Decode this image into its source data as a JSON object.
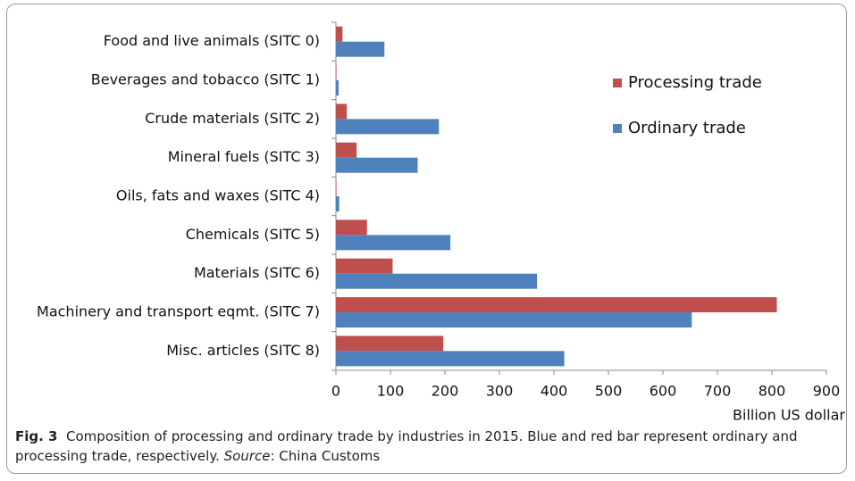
{
  "chart_data": {
    "type": "bar",
    "orientation": "horizontal",
    "categories": [
      "Food and live animals (SITC 0)",
      "Beverages and tobacco (SITC 1)",
      "Crude materials (SITC 2)",
      "Mineral fuels (SITC 3)",
      "Oils, fats and waxes (SITC 4)",
      "Chemicals (SITC 5)",
      "Materials (SITC 6)",
      "Machinery and transport eqmt. (SITC 7)",
      "Misc. articles (SITC 8)"
    ],
    "series": [
      {
        "name": "Processing trade",
        "color": "#c0504d",
        "values": [
          12,
          1,
          20,
          38,
          1,
          57,
          104,
          809,
          197
        ]
      },
      {
        "name": "Ordinary trade",
        "color": "#4f81bd",
        "values": [
          89,
          5,
          189,
          150,
          6,
          210,
          369,
          653,
          419
        ]
      }
    ],
    "xlim": [
      0,
      900
    ],
    "xticks": [
      0,
      100,
      200,
      300,
      400,
      500,
      600,
      700,
      800,
      900
    ],
    "xlabel": "Billion US dollar",
    "legend": "right",
    "caption": {
      "label": "Fig. 3",
      "text": "Composition of processing and ordinary trade by industries in 2015. Blue and red bar represent ordinary and processing trade, respectively.",
      "source_label": "Source",
      "source": ": China Customs"
    }
  }
}
